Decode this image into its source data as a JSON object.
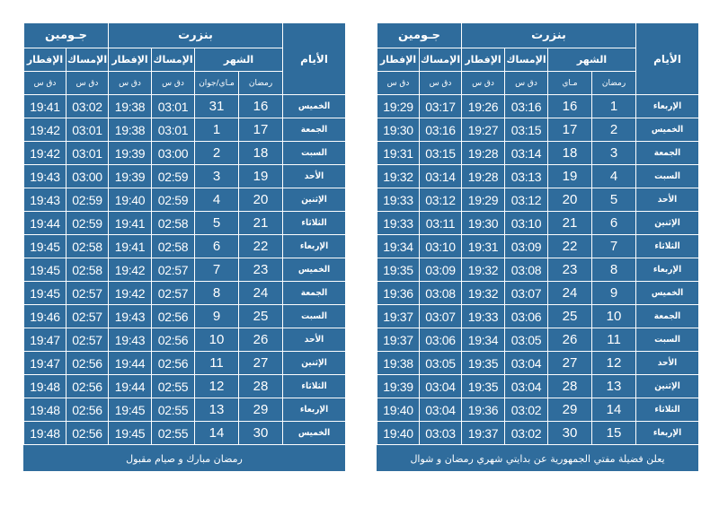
{
  "headers": {
    "city_djoumine": "جـومين",
    "city_bizerte": "بنزرت",
    "iftar": "الإفطار",
    "imsak": "الإمساك",
    "month": "الشهر",
    "days": "الأيام",
    "time_unit": "دق س",
    "ramadan": "رمضان",
    "left_greg": "مـاي/جوان",
    "right_greg": "مـاي"
  },
  "left_table": {
    "rows": [
      {
        "day": "الخميس",
        "ram": "16",
        "greg": "31",
        "b_imsak": "03:01",
        "b_iftar": "19:38",
        "d_imsak": "03:02",
        "d_iftar": "19:41"
      },
      {
        "day": "الجمعة",
        "ram": "17",
        "greg": "1",
        "b_imsak": "03:01",
        "b_iftar": "19:38",
        "d_imsak": "03:01",
        "d_iftar": "19:42"
      },
      {
        "day": "السبت",
        "ram": "18",
        "greg": "2",
        "b_imsak": "03:00",
        "b_iftar": "19:39",
        "d_imsak": "03:01",
        "d_iftar": "19:42"
      },
      {
        "day": "الأحد",
        "ram": "19",
        "greg": "3",
        "b_imsak": "02:59",
        "b_iftar": "19:39",
        "d_imsak": "03:00",
        "d_iftar": "19:43"
      },
      {
        "day": "الإثنين",
        "ram": "20",
        "greg": "4",
        "b_imsak": "02:59",
        "b_iftar": "19:40",
        "d_imsak": "02:59",
        "d_iftar": "19:43"
      },
      {
        "day": "الثلاثاء",
        "ram": "21",
        "greg": "5",
        "b_imsak": "02:58",
        "b_iftar": "19:41",
        "d_imsak": "02:59",
        "d_iftar": "19:44"
      },
      {
        "day": "الإربعاء",
        "ram": "22",
        "greg": "6",
        "b_imsak": "02:58",
        "b_iftar": "19:41",
        "d_imsak": "02:58",
        "d_iftar": "19:45"
      },
      {
        "day": "الخميس",
        "ram": "23",
        "greg": "7",
        "b_imsak": "02:57",
        "b_iftar": "19:42",
        "d_imsak": "02:58",
        "d_iftar": "19:45"
      },
      {
        "day": "الجمعة",
        "ram": "24",
        "greg": "8",
        "b_imsak": "02:57",
        "b_iftar": "19:42",
        "d_imsak": "02:57",
        "d_iftar": "19:45"
      },
      {
        "day": "السبت",
        "ram": "25",
        "greg": "9",
        "b_imsak": "02:56",
        "b_iftar": "19:43",
        "d_imsak": "02:57",
        "d_iftar": "19:46"
      },
      {
        "day": "الأحد",
        "ram": "26",
        "greg": "10",
        "b_imsak": "02:56",
        "b_iftar": "19:43",
        "d_imsak": "02:57",
        "d_iftar": "19:47"
      },
      {
        "day": "الإثنين",
        "ram": "27",
        "greg": "11",
        "b_imsak": "02:56",
        "b_iftar": "19:44",
        "d_imsak": "02:56",
        "d_iftar": "19:47"
      },
      {
        "day": "الثلاثاء",
        "ram": "28",
        "greg": "12",
        "b_imsak": "02:55",
        "b_iftar": "19:44",
        "d_imsak": "02:56",
        "d_iftar": "19:48"
      },
      {
        "day": "الإربعاء",
        "ram": "29",
        "greg": "13",
        "b_imsak": "02:55",
        "b_iftar": "19:45",
        "d_imsak": "02:56",
        "d_iftar": "19:48"
      },
      {
        "day": "الخميس",
        "ram": "30",
        "greg": "14",
        "b_imsak": "02:55",
        "b_iftar": "19:45",
        "d_imsak": "02:56",
        "d_iftar": "19:48"
      }
    ],
    "footer": "رمضان مبارك و صيام مقبول"
  },
  "right_table": {
    "rows": [
      {
        "day": "الإربعاء",
        "ram": "1",
        "greg": "16",
        "b_imsak": "03:16",
        "b_iftar": "19:26",
        "d_imsak": "03:17",
        "d_iftar": "19:29"
      },
      {
        "day": "الخميس",
        "ram": "2",
        "greg": "17",
        "b_imsak": "03:15",
        "b_iftar": "19:27",
        "d_imsak": "03:16",
        "d_iftar": "19:30"
      },
      {
        "day": "الجمعة",
        "ram": "3",
        "greg": "18",
        "b_imsak": "03:14",
        "b_iftar": "19:28",
        "d_imsak": "03:15",
        "d_iftar": "19:31"
      },
      {
        "day": "السبت",
        "ram": "4",
        "greg": "19",
        "b_imsak": "03:13",
        "b_iftar": "19:28",
        "d_imsak": "03:14",
        "d_iftar": "19:32"
      },
      {
        "day": "الأحد",
        "ram": "5",
        "greg": "20",
        "b_imsak": "03:12",
        "b_iftar": "19:29",
        "d_imsak": "03:12",
        "d_iftar": "19:33"
      },
      {
        "day": "الإثنين",
        "ram": "6",
        "greg": "21",
        "b_imsak": "03:10",
        "b_iftar": "19:30",
        "d_imsak": "03:11",
        "d_iftar": "19:33"
      },
      {
        "day": "الثلاثاء",
        "ram": "7",
        "greg": "22",
        "b_imsak": "03:09",
        "b_iftar": "19:31",
        "d_imsak": "03:10",
        "d_iftar": "19:34"
      },
      {
        "day": "الإربعاء",
        "ram": "8",
        "greg": "23",
        "b_imsak": "03:08",
        "b_iftar": "19:32",
        "d_imsak": "03:09",
        "d_iftar": "19:35"
      },
      {
        "day": "الخميس",
        "ram": "9",
        "greg": "24",
        "b_imsak": "03:07",
        "b_iftar": "19:32",
        "d_imsak": "03:08",
        "d_iftar": "19:36"
      },
      {
        "day": "الجمعة",
        "ram": "10",
        "greg": "25",
        "b_imsak": "03:06",
        "b_iftar": "19:33",
        "d_imsak": "03:07",
        "d_iftar": "19:37"
      },
      {
        "day": "السبت",
        "ram": "11",
        "greg": "26",
        "b_imsak": "03:05",
        "b_iftar": "19:34",
        "d_imsak": "03:06",
        "d_iftar": "19:37"
      },
      {
        "day": "الأحد",
        "ram": "12",
        "greg": "27",
        "b_imsak": "03:04",
        "b_iftar": "19:35",
        "d_imsak": "03:05",
        "d_iftar": "19:38"
      },
      {
        "day": "الإثنين",
        "ram": "13",
        "greg": "28",
        "b_imsak": "03:04",
        "b_iftar": "19:35",
        "d_imsak": "03:04",
        "d_iftar": "19:39"
      },
      {
        "day": "الثلاثاء",
        "ram": "14",
        "greg": "29",
        "b_imsak": "03:02",
        "b_iftar": "19:36",
        "d_imsak": "03:04",
        "d_iftar": "19:40"
      },
      {
        "day": "الإربعاء",
        "ram": "15",
        "greg": "30",
        "b_imsak": "03:02",
        "b_iftar": "19:37",
        "d_imsak": "03:03",
        "d_iftar": "19:40"
      }
    ],
    "footer": "يعلن فضيلة مفتي الجمهورية عن بدايتي شهري رمضان و شوال"
  },
  "colors": {
    "panel_bg": "#2f6c9c",
    "text": "#ffffff",
    "grid": "#ffffff"
  }
}
